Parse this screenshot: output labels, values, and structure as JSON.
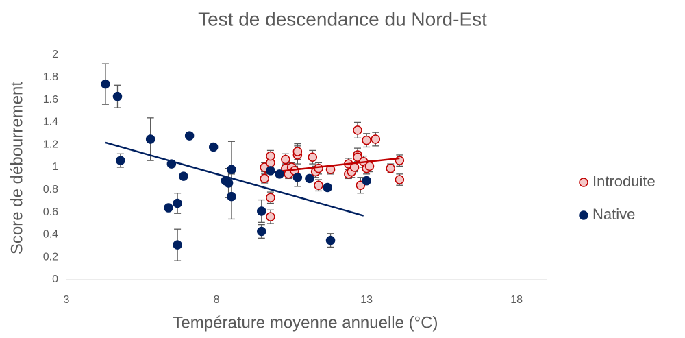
{
  "chart_data": {
    "type": "scatter",
    "title": "Test de descendance du Nord-Est",
    "x_label": "Température moyenne annuelle (°C)",
    "y_label": "Score de débourrement",
    "xlim": [
      3,
      19
    ],
    "ylim": [
      0,
      2
    ],
    "xticks": [
      3,
      8,
      13,
      18
    ],
    "yticks": [
      0,
      0.2,
      0.4,
      0.6,
      0.8,
      1,
      1.2,
      1.4,
      1.6,
      1.8,
      2
    ],
    "legend": "right",
    "series": [
      {
        "name": "Introduite",
        "color": "#c00000",
        "fill": "#f4c7c7",
        "x": [
          9.6,
          9.6,
          9.8,
          9.8,
          9.8,
          9.8,
          10.3,
          10.3,
          10.4,
          10.5,
          10.6,
          10.7,
          10.7,
          11.2,
          11.3,
          11.4,
          11.4,
          11.8,
          12.4,
          12.4,
          12.5,
          12.6,
          12.7,
          12.7,
          12.7,
          12.8,
          12.9,
          13.0,
          13.0,
          13.1,
          13.3,
          13.8,
          14.1,
          14.1
        ],
        "values": [
          1.0,
          0.9,
          1.04,
          1.1,
          0.73,
          0.56,
          1.07,
          0.99,
          0.94,
          1.0,
          0.97,
          1.11,
          1.14,
          1.09,
          0.96,
          0.99,
          0.84,
          0.98,
          0.94,
          1.03,
          0.96,
          1.0,
          1.33,
          1.11,
          1.09,
          0.84,
          1.05,
          0.99,
          1.24,
          1.01,
          1.25,
          0.99,
          1.06,
          0.89
        ],
        "errors": [
          0.04,
          0.04,
          0.05,
          0.05,
          0.05,
          0.06,
          0.05,
          0.04,
          0.04,
          0.04,
          0.04,
          0.08,
          0.07,
          0.06,
          0.05,
          0.05,
          0.05,
          0.04,
          0.04,
          0.05,
          0.05,
          0.04,
          0.07,
          0.06,
          0.05,
          0.07,
          0.05,
          0.05,
          0.06,
          0.05,
          0.06,
          0.04,
          0.05,
          0.05
        ],
        "trend": {
          "x": [
            9.6,
            14.1
          ],
          "y": [
            0.95,
            1.08
          ]
        }
      },
      {
        "name": "Native",
        "color": "#002060",
        "fill": "#002060",
        "x": [
          4.3,
          4.7,
          4.8,
          5.8,
          6.5,
          6.4,
          6.7,
          6.7,
          6.9,
          7.1,
          7.9,
          8.3,
          8.4,
          8.5,
          8.5,
          9.5,
          9.5,
          9.8,
          10.1,
          10.7,
          11.1,
          11.7,
          11.8,
          13.0
        ],
        "values": [
          1.74,
          1.63,
          1.06,
          1.25,
          1.03,
          0.64,
          0.68,
          0.31,
          0.92,
          1.28,
          1.18,
          0.88,
          0.86,
          0.98,
          0.74,
          0.61,
          0.43,
          0.97,
          0.94,
          0.91,
          0.9,
          0.82,
          0.35,
          0.88
        ],
        "errors": [
          0.18,
          0.1,
          0.06,
          0.19,
          null,
          null,
          0.09,
          0.14,
          null,
          null,
          null,
          null,
          0.13,
          0.25,
          0.2,
          0.1,
          0.06,
          null,
          null,
          0.08,
          null,
          null,
          0.06,
          null
        ],
        "trend": {
          "x": [
            4.3,
            12.9
          ],
          "y": [
            1.22,
            0.57
          ]
        }
      }
    ]
  }
}
